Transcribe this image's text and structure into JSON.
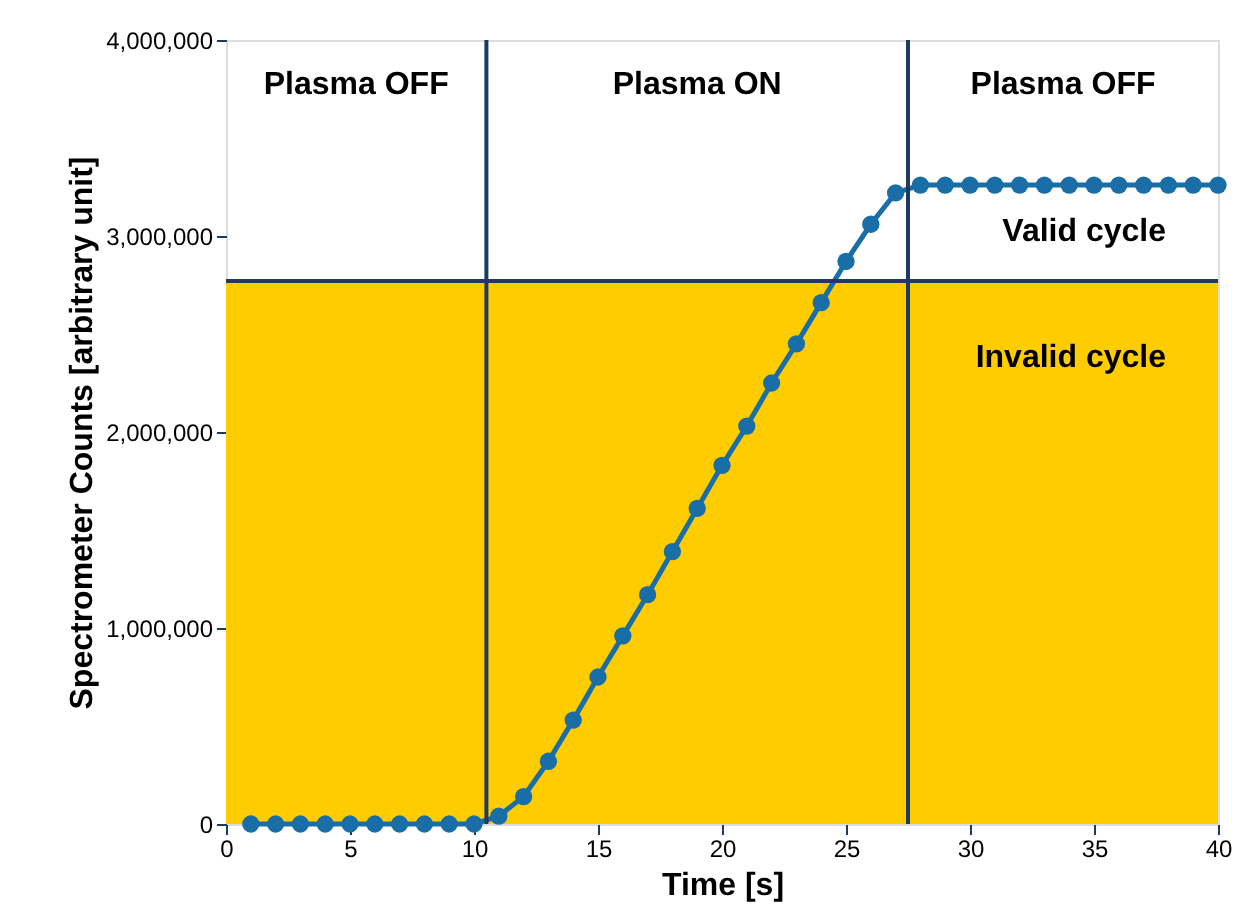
{
  "chart_data": {
    "type": "line",
    "xlabel": "Time [s]",
    "ylabel": "Spectrometer Counts [arbitrary unit]",
    "x": [
      1,
      2,
      3,
      4,
      5,
      6,
      7,
      8,
      9,
      10,
      11,
      12,
      13,
      14,
      15,
      16,
      17,
      18,
      19,
      20,
      21,
      22,
      23,
      24,
      25,
      26,
      27,
      28,
      29,
      30,
      31,
      32,
      33,
      34,
      35,
      36,
      37,
      38,
      39,
      40
    ],
    "series": [
      {
        "color": "#1a6ea8",
        "values": [
          0,
          0,
          0,
          0,
          0,
          0,
          0,
          0,
          0,
          0,
          40000,
          140000,
          320000,
          530000,
          750000,
          960000,
          1170000,
          1390000,
          1610000,
          1830000,
          2030000,
          2250000,
          2450000,
          2660000,
          2870000,
          3060000,
          3220000,
          3260000,
          3260000,
          3260000,
          3260000,
          3260000,
          3260000,
          3260000,
          3260000,
          3260000,
          3260000,
          3260000,
          3260000,
          3260000
        ]
      }
    ],
    "marker": "circle",
    "line_style": "solid",
    "xlim": [
      0,
      40
    ],
    "xticks": [
      0,
      5,
      10,
      15,
      20,
      25,
      30,
      35,
      40
    ],
    "ylim": [
      0,
      4000000
    ],
    "yticks": [
      0,
      {
        "value": 1000000,
        "label": "1,000,000"
      },
      {
        "value": 2000000,
        "label": "2,000,000"
      },
      {
        "value": 3000000,
        "label": "3,000,000"
      },
      {
        "value": 4000000,
        "label": "4,000,000"
      }
    ],
    "bands": [
      {
        "axis": "y",
        "from": 0,
        "to": 2770000,
        "color": "#ffcc00",
        "label": "Invalid cycle"
      }
    ],
    "annotations": [
      "Plasma OFF",
      "Plasma ON",
      "Plasma OFF",
      "Valid cycle"
    ],
    "ref_lines": [
      {
        "axis": "x",
        "value": 10.5,
        "color": "#1f3a5f"
      },
      {
        "axis": "x",
        "value": 27.5,
        "color": "#1f3a5f"
      },
      {
        "axis": "y",
        "value": 2770000,
        "color": "#1f3a5f"
      }
    ],
    "grid": false
  }
}
